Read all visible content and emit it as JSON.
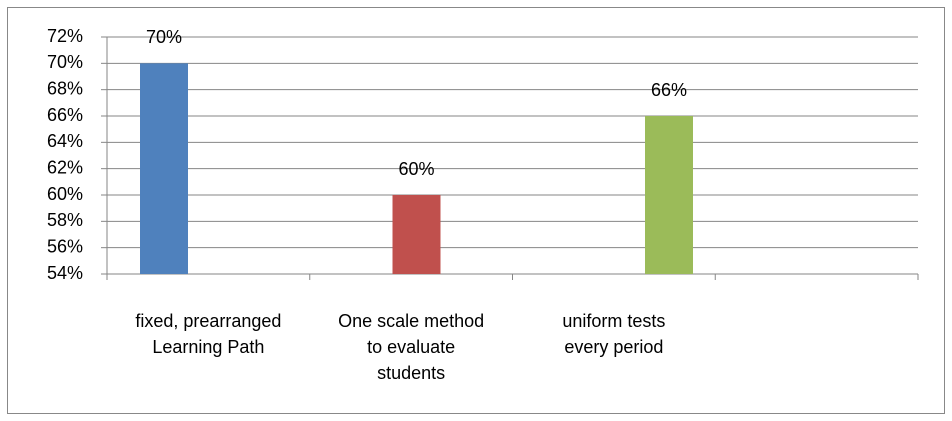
{
  "chart_data": {
    "type": "bar",
    "categories": [
      "fixed, prearranged Learning Path",
      "One scale method to evaluate students",
      "uniform tests every period",
      null
    ],
    "values": [
      70,
      60,
      66,
      null
    ],
    "value_labels": [
      "70%",
      "60%",
      "66%",
      null
    ],
    "colors": [
      "#4f81bd",
      "#c0504d",
      "#9bbb59",
      null
    ],
    "ylim": [
      54,
      72
    ],
    "yticks": [
      {
        "value": 54,
        "label": "54%"
      },
      {
        "value": 56,
        "label": "56%"
      },
      {
        "value": 58,
        "label": "58%"
      },
      {
        "value": 60,
        "label": "60%"
      },
      {
        "value": 62,
        "label": "62%"
      },
      {
        "value": 64,
        "label": "64%"
      },
      {
        "value": 66,
        "label": "66%"
      },
      {
        "value": 68,
        "label": "68%"
      },
      {
        "value": 70,
        "label": "70%"
      },
      {
        "value": 72,
        "label": "72%"
      }
    ],
    "grid": true
  }
}
